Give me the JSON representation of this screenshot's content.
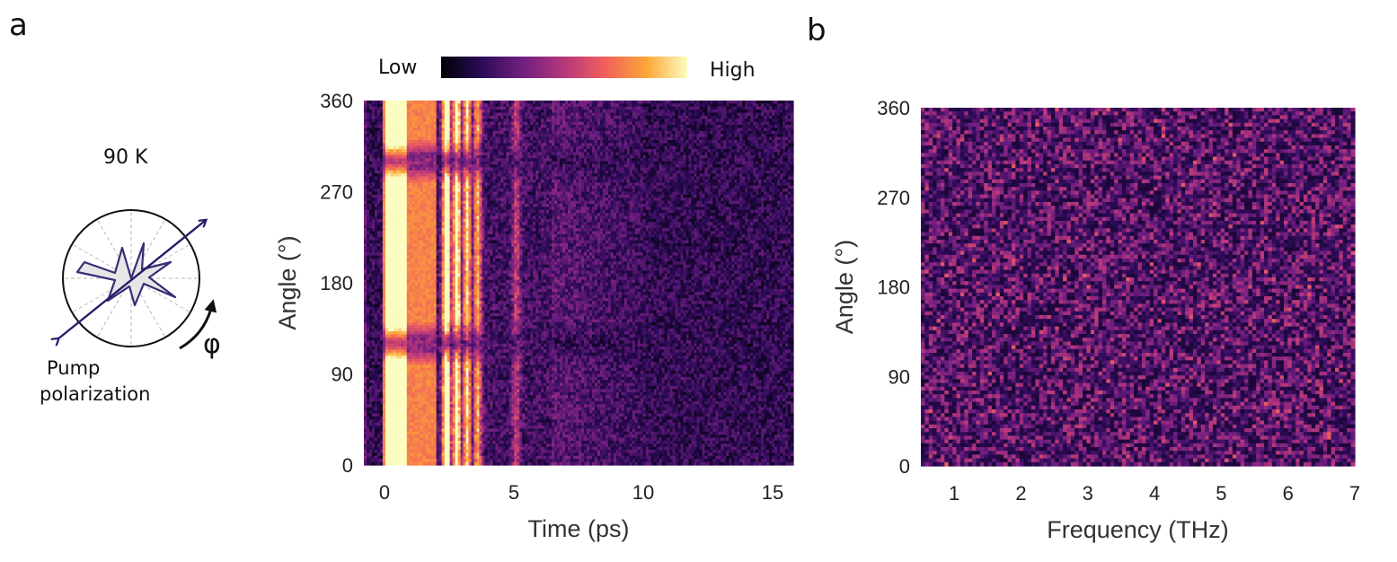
{
  "panel_a_label": "a",
  "panel_b_label": "b",
  "colorbar": {
    "low_label": "Low",
    "high_label": "High"
  },
  "polar_inset": {
    "temperature_label": "90 K",
    "pump_label_line1": "Pump",
    "pump_label_line2": "polarization",
    "angle_symbol": "φ"
  },
  "chart_data": [
    {
      "type": "heatmap",
      "title": "",
      "xlabel": "Time (ps)",
      "ylabel": "Angle (°)",
      "xlim": [
        -0.8,
        15.8
      ],
      "ylim": [
        0,
        360
      ],
      "xticks": [
        0,
        5,
        10,
        15
      ],
      "yticks": [
        0,
        90,
        180,
        270,
        360
      ],
      "colormap": "inferno",
      "colormap_stops": [
        "#000004",
        "#2d0b59",
        "#721f81",
        "#b6377a",
        "#f1605d",
        "#fca636",
        "#fcfdbf"
      ],
      "bright_bands_ps": [
        0.2,
        1.5,
        2.4,
        2.8,
        3.2,
        3.6,
        5.1
      ],
      "dark_angle_nodes_deg": [
        120,
        300
      ],
      "description_value_range": "saturated near t=0, decaying oscillations to ~6 ps, noise beyond"
    },
    {
      "type": "heatmap",
      "title": "",
      "xlabel": "Frequency (THz)",
      "ylabel": "Angle (°)",
      "xlim": [
        0.5,
        7
      ],
      "ylim": [
        0,
        360
      ],
      "xticks": [
        1,
        2,
        3,
        4,
        5,
        6,
        7
      ],
      "yticks": [
        0,
        90,
        180,
        270,
        360
      ],
      "colormap": "inferno",
      "colormap_stops": [
        "#000004",
        "#2d0b59",
        "#721f81",
        "#b6377a",
        "#f1605d",
        "#fca636",
        "#fcfdbf"
      ]
    }
  ]
}
